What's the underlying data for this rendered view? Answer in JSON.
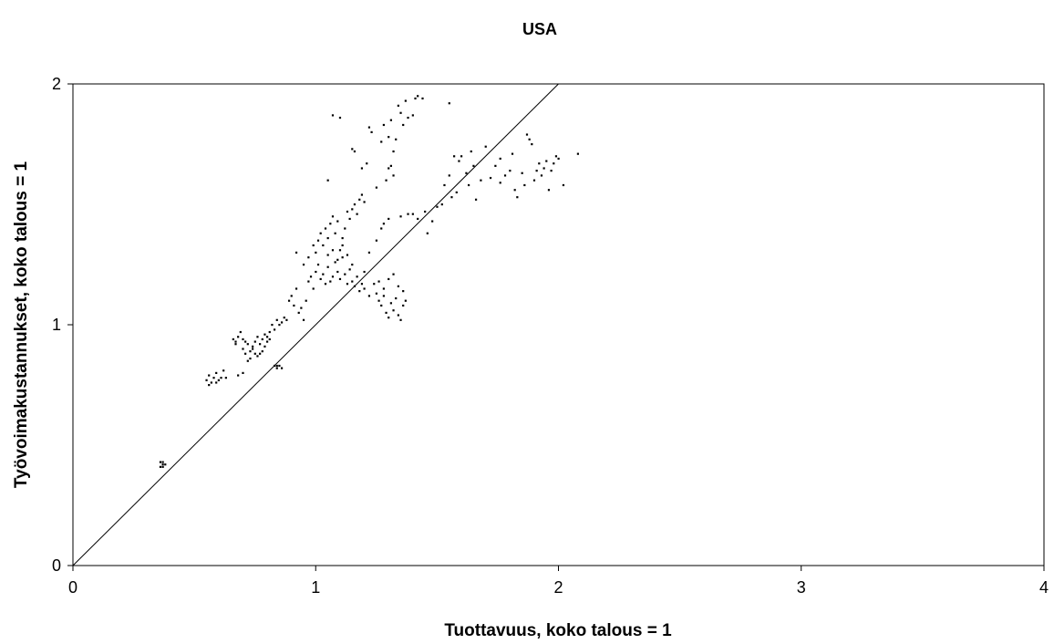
{
  "chart_data": {
    "type": "scatter",
    "title": "USA",
    "xlabel": "Tuottavuus, koko talous = 1",
    "ylabel": "Työvoimakustannukset, koko talous = 1",
    "xlim": [
      0,
      4
    ],
    "ylim": [
      0,
      2
    ],
    "xticks": [
      "0",
      "1",
      "2",
      "3",
      "4"
    ],
    "yticks": [
      "0",
      "1",
      "2"
    ],
    "grid": false,
    "legend": "none",
    "reference_line": {
      "from": [
        0,
        0
      ],
      "to": [
        2,
        2
      ]
    },
    "colors": {
      "points": "#000000",
      "axes": "#000000",
      "background": "#ffffff"
    },
    "series": [
      {
        "values": [
          [
            0.36,
            0.43
          ],
          [
            0.37,
            0.42
          ],
          [
            0.36,
            0.41
          ],
          [
            0.37,
            0.41
          ],
          [
            0.38,
            0.42
          ],
          [
            0.37,
            0.43
          ],
          [
            0.55,
            0.77
          ],
          [
            0.56,
            0.79
          ],
          [
            0.57,
            0.76
          ],
          [
            0.58,
            0.78
          ],
          [
            0.59,
            0.8
          ],
          [
            0.6,
            0.77
          ],
          [
            0.61,
            0.78
          ],
          [
            0.62,
            0.81
          ],
          [
            0.63,
            0.78
          ],
          [
            0.56,
            0.75
          ],
          [
            0.59,
            0.76
          ],
          [
            0.66,
            0.94
          ],
          [
            0.67,
            0.93
          ],
          [
            0.68,
            0.95
          ],
          [
            0.69,
            0.97
          ],
          [
            0.7,
            0.94
          ],
          [
            0.71,
            0.93
          ],
          [
            0.72,
            0.92
          ],
          [
            0.73,
            0.89
          ],
          [
            0.74,
            0.9
          ],
          [
            0.75,
            0.88
          ],
          [
            0.73,
            0.86
          ],
          [
            0.74,
            0.91
          ],
          [
            0.75,
            0.93
          ],
          [
            0.76,
            0.95
          ],
          [
            0.77,
            0.92
          ],
          [
            0.78,
            0.94
          ],
          [
            0.79,
            0.96
          ],
          [
            0.8,
            0.95
          ],
          [
            0.81,
            0.97
          ],
          [
            0.82,
            1.0
          ],
          [
            0.83,
            0.98
          ],
          [
            0.8,
            0.93
          ],
          [
            0.79,
            0.91
          ],
          [
            0.77,
            0.88
          ],
          [
            0.76,
            0.87
          ],
          [
            0.78,
            0.89
          ],
          [
            0.81,
            0.94
          ],
          [
            0.84,
            1.02
          ],
          [
            0.85,
            1.0
          ],
          [
            0.86,
            1.01
          ],
          [
            0.87,
            1.03
          ],
          [
            0.88,
            1.02
          ],
          [
            0.67,
            0.92
          ],
          [
            0.7,
            0.9
          ],
          [
            0.71,
            0.88
          ],
          [
            0.72,
            0.85
          ],
          [
            0.7,
            0.8
          ],
          [
            0.68,
            0.79
          ],
          [
            0.83,
            0.83
          ],
          [
            0.84,
            0.82
          ],
          [
            0.85,
            0.83
          ],
          [
            0.86,
            0.82
          ],
          [
            0.84,
            0.83
          ],
          [
            0.89,
            1.1
          ],
          [
            0.9,
            1.12
          ],
          [
            0.91,
            1.08
          ],
          [
            0.92,
            1.15
          ],
          [
            0.93,
            1.05
          ],
          [
            0.94,
            1.07
          ],
          [
            0.95,
            1.02
          ],
          [
            0.96,
            1.1
          ],
          [
            0.97,
            1.18
          ],
          [
            0.98,
            1.2
          ],
          [
            0.99,
            1.15
          ],
          [
            1.0,
            1.22
          ],
          [
            1.01,
            1.25
          ],
          [
            1.02,
            1.19
          ],
          [
            1.03,
            1.21
          ],
          [
            1.04,
            1.17
          ],
          [
            1.05,
            1.24
          ],
          [
            1.06,
            1.18
          ],
          [
            1.07,
            1.2
          ],
          [
            1.08,
            1.26
          ],
          [
            1.09,
            1.22
          ],
          [
            1.1,
            1.19
          ],
          [
            1.11,
            1.28
          ],
          [
            1.12,
            1.21
          ],
          [
            1.13,
            1.17
          ],
          [
            1.14,
            1.23
          ],
          [
            1.15,
            1.18
          ],
          [
            1.16,
            1.16
          ],
          [
            1.17,
            1.2
          ],
          [
            1.18,
            1.14
          ],
          [
            1.19,
            1.17
          ],
          [
            1.2,
            1.22
          ],
          [
            1.0,
            1.3
          ],
          [
            1.01,
            1.35
          ],
          [
            1.02,
            1.38
          ],
          [
            1.03,
            1.33
          ],
          [
            1.04,
            1.4
          ],
          [
            1.05,
            1.36
          ],
          [
            1.06,
            1.42
          ],
          [
            1.07,
            1.45
          ],
          [
            1.08,
            1.38
          ],
          [
            1.09,
            1.43
          ],
          [
            1.1,
            1.31
          ],
          [
            1.11,
            1.36
          ],
          [
            1.12,
            1.4
          ],
          [
            1.13,
            1.47
          ],
          [
            1.14,
            1.44
          ],
          [
            1.15,
            1.48
          ],
          [
            1.16,
            1.5
          ],
          [
            1.17,
            1.46
          ],
          [
            1.18,
            1.52
          ],
          [
            1.19,
            1.54
          ],
          [
            1.2,
            1.51
          ],
          [
            0.92,
            1.3
          ],
          [
            0.95,
            1.25
          ],
          [
            0.97,
            1.28
          ],
          [
            0.99,
            1.33
          ],
          [
            1.05,
            1.29
          ],
          [
            1.07,
            1.31
          ],
          [
            1.09,
            1.27
          ],
          [
            1.11,
            1.33
          ],
          [
            1.13,
            1.29
          ],
          [
            1.15,
            1.25
          ],
          [
            1.05,
            1.6
          ],
          [
            1.07,
            1.87
          ],
          [
            1.1,
            1.86
          ],
          [
            1.15,
            1.73
          ],
          [
            1.16,
            1.72
          ],
          [
            1.19,
            1.65
          ],
          [
            1.21,
            1.67
          ],
          [
            1.22,
            1.82
          ],
          [
            1.23,
            1.8
          ],
          [
            1.25,
            1.57
          ],
          [
            1.27,
            1.76
          ],
          [
            1.28,
            1.83
          ],
          [
            1.3,
            1.78
          ],
          [
            1.31,
            1.85
          ],
          [
            1.32,
            1.72
          ],
          [
            1.33,
            1.77
          ],
          [
            1.34,
            1.91
          ],
          [
            1.35,
            1.88
          ],
          [
            1.36,
            1.83
          ],
          [
            1.37,
            1.93
          ],
          [
            1.38,
            1.86
          ],
          [
            1.4,
            1.87
          ],
          [
            1.41,
            1.94
          ],
          [
            1.42,
            1.95
          ],
          [
            1.44,
            1.94
          ],
          [
            1.3,
            1.65
          ],
          [
            1.32,
            1.62
          ],
          [
            1.29,
            1.6
          ],
          [
            1.31,
            1.66
          ],
          [
            1.2,
            1.15
          ],
          [
            1.22,
            1.12
          ],
          [
            1.24,
            1.17
          ],
          [
            1.25,
            1.13
          ],
          [
            1.26,
            1.1
          ],
          [
            1.27,
            1.08
          ],
          [
            1.28,
            1.12
          ],
          [
            1.29,
            1.05
          ],
          [
            1.3,
            1.03
          ],
          [
            1.31,
            1.09
          ],
          [
            1.32,
            1.06
          ],
          [
            1.33,
            1.11
          ],
          [
            1.34,
            1.04
          ],
          [
            1.35,
            1.02
          ],
          [
            1.36,
            1.08
          ],
          [
            1.37,
            1.1
          ],
          [
            1.26,
            1.18
          ],
          [
            1.28,
            1.15
          ],
          [
            1.3,
            1.19
          ],
          [
            1.32,
            1.21
          ],
          [
            1.34,
            1.16
          ],
          [
            1.36,
            1.14
          ],
          [
            1.22,
            1.3
          ],
          [
            1.25,
            1.35
          ],
          [
            1.27,
            1.4
          ],
          [
            1.28,
            1.42
          ],
          [
            1.3,
            1.44
          ],
          [
            1.35,
            1.45
          ],
          [
            1.38,
            1.46
          ],
          [
            1.4,
            1.46
          ],
          [
            1.42,
            1.44
          ],
          [
            1.45,
            1.47
          ],
          [
            1.46,
            1.38
          ],
          [
            1.48,
            1.43
          ],
          [
            1.5,
            1.49
          ],
          [
            1.52,
            1.5
          ],
          [
            1.53,
            1.58
          ],
          [
            1.55,
            1.62
          ],
          [
            1.56,
            1.53
          ],
          [
            1.58,
            1.55
          ],
          [
            1.6,
            1.7
          ],
          [
            1.62,
            1.63
          ],
          [
            1.63,
            1.58
          ],
          [
            1.65,
            1.66
          ],
          [
            1.66,
            1.52
          ],
          [
            1.68,
            1.6
          ],
          [
            1.7,
            1.74
          ],
          [
            1.72,
            1.61
          ],
          [
            1.74,
            1.66
          ],
          [
            1.76,
            1.59
          ],
          [
            1.78,
            1.62
          ],
          [
            1.8,
            1.64
          ],
          [
            1.82,
            1.56
          ],
          [
            1.83,
            1.53
          ],
          [
            1.85,
            1.63
          ],
          [
            1.86,
            1.58
          ],
          [
            1.87,
            1.79
          ],
          [
            1.88,
            1.77
          ],
          [
            1.89,
            1.75
          ],
          [
            1.9,
            1.6
          ],
          [
            1.91,
            1.64
          ],
          [
            1.92,
            1.67
          ],
          [
            1.93,
            1.62
          ],
          [
            1.94,
            1.65
          ],
          [
            1.95,
            1.68
          ],
          [
            1.96,
            1.56
          ],
          [
            1.97,
            1.64
          ],
          [
            1.98,
            1.67
          ],
          [
            1.99,
            1.7
          ],
          [
            2.0,
            1.69
          ],
          [
            2.02,
            1.58
          ],
          [
            2.08,
            1.71
          ],
          [
            1.55,
            1.92
          ],
          [
            1.57,
            1.7
          ],
          [
            1.59,
            1.68
          ],
          [
            1.64,
            1.72
          ],
          [
            1.76,
            1.69
          ],
          [
            1.81,
            1.71
          ]
        ]
      }
    ]
  }
}
